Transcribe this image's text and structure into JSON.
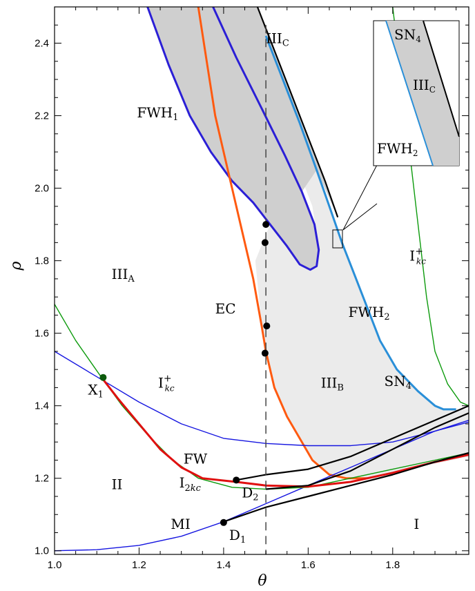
{
  "chart_data": {
    "type": "line",
    "title": "",
    "xlabel": "θ",
    "ylabel": "ρ",
    "xlim": [
      1.0,
      1.98
    ],
    "ylim": [
      0.99,
      2.5
    ],
    "x_ticks": [
      "1.0",
      "1.2",
      "1.4",
      "1.6",
      "1.8"
    ],
    "y_ticks": [
      "1.0",
      "1.2",
      "1.4",
      "1.6",
      "1.8",
      "2.0",
      "2.2",
      "2.4"
    ],
    "grid": false,
    "legend": "none",
    "dashed_line_x": 1.5,
    "colors": {
      "fwh1": "#2b1fd6",
      "ec": "#ff5a10",
      "fwh2": "#2a8fd8",
      "sn4": "#000000",
      "ik_plus": "#1515e0",
      "i2k": "#0c9a0c",
      "fw": "#e01010",
      "shade_dark": "#cfcfcf",
      "shade_light": "#ebebeb"
    },
    "series": [
      {
        "key": "fwh1",
        "points": [
          [
            1.22,
            2.5
          ],
          [
            1.27,
            2.34
          ],
          [
            1.32,
            2.2
          ],
          [
            1.37,
            2.1
          ],
          [
            1.42,
            2.02
          ],
          [
            1.47,
            1.96
          ],
          [
            1.51,
            1.9
          ],
          [
            1.55,
            1.84
          ],
          [
            1.58,
            1.79
          ],
          [
            1.605,
            1.775
          ],
          [
            1.62,
            1.785
          ],
          [
            1.625,
            1.83
          ],
          [
            1.615,
            1.9
          ],
          [
            1.585,
            1.99
          ],
          [
            1.545,
            2.09
          ],
          [
            1.49,
            2.22
          ],
          [
            1.43,
            2.36
          ],
          [
            1.375,
            2.5
          ]
        ]
      },
      {
        "key": "ec",
        "points": [
          [
            1.34,
            2.5
          ],
          [
            1.36,
            2.35
          ],
          [
            1.38,
            2.2
          ],
          [
            1.41,
            2.05
          ],
          [
            1.44,
            1.9
          ],
          [
            1.47,
            1.75
          ],
          [
            1.49,
            1.62
          ],
          [
            1.5,
            1.55
          ],
          [
            1.52,
            1.45
          ],
          [
            1.55,
            1.37
          ],
          [
            1.58,
            1.31
          ],
          [
            1.61,
            1.25
          ],
          [
            1.65,
            1.21
          ],
          [
            1.69,
            1.2
          ],
          [
            1.74,
            1.2
          ]
        ]
      },
      {
        "key": "fwh2",
        "points": [
          [
            1.5,
            2.42
          ],
          [
            1.54,
            2.3
          ],
          [
            1.58,
            2.18
          ],
          [
            1.62,
            2.05
          ],
          [
            1.65,
            1.95
          ],
          [
            1.68,
            1.85
          ],
          [
            1.71,
            1.76
          ],
          [
            1.74,
            1.67
          ],
          [
            1.77,
            1.58
          ],
          [
            1.81,
            1.5
          ],
          [
            1.86,
            1.44
          ],
          [
            1.9,
            1.4
          ],
          [
            1.92,
            1.39
          ],
          [
            1.95,
            1.39
          ]
        ]
      },
      {
        "key": "sn4",
        "points": [
          [
            1.48,
            2.5
          ],
          [
            1.52,
            2.38
          ],
          [
            1.56,
            2.26
          ],
          [
            1.6,
            2.14
          ],
          [
            1.64,
            2.02
          ],
          [
            1.67,
            1.92
          ]
        ]
      },
      {
        "key": "ik_plus",
        "points": [
          [
            1.0,
            1.55
          ],
          [
            1.1,
            1.48
          ],
          [
            1.2,
            1.41
          ],
          [
            1.3,
            1.35
          ],
          [
            1.4,
            1.31
          ],
          [
            1.5,
            1.296
          ],
          [
            1.6,
            1.29
          ],
          [
            1.7,
            1.29
          ],
          [
            1.8,
            1.3
          ],
          [
            1.9,
            1.33
          ],
          [
            1.98,
            1.355
          ]
        ]
      },
      {
        "key": "ik_plus",
        "points": [
          [
            1.0,
            1.0
          ],
          [
            1.1,
            1.003
          ],
          [
            1.2,
            1.015
          ],
          [
            1.3,
            1.04
          ],
          [
            1.4,
            1.08
          ],
          [
            1.5,
            1.13
          ],
          [
            1.6,
            1.18
          ],
          [
            1.7,
            1.23
          ],
          [
            1.8,
            1.28
          ],
          [
            1.9,
            1.33
          ],
          [
            1.98,
            1.36
          ]
        ]
      },
      {
        "key": "i2k",
        "points": [
          [
            1.0,
            1.68
          ],
          [
            1.05,
            1.58
          ],
          [
            1.11,
            1.48
          ],
          [
            1.16,
            1.4
          ],
          [
            1.22,
            1.32
          ],
          [
            1.28,
            1.25
          ],
          [
            1.34,
            1.2
          ],
          [
            1.42,
            1.175
          ],
          [
            1.5,
            1.17
          ],
          [
            1.6,
            1.175
          ],
          [
            1.7,
            1.2
          ],
          [
            1.8,
            1.225
          ],
          [
            1.9,
            1.25
          ],
          [
            1.98,
            1.27
          ]
        ]
      },
      {
        "key": "i2k",
        "points": [
          [
            1.8,
            2.5
          ],
          [
            1.83,
            2.2
          ],
          [
            1.86,
            1.9
          ],
          [
            1.88,
            1.7
          ],
          [
            1.9,
            1.55
          ],
          [
            1.93,
            1.46
          ],
          [
            1.96,
            1.41
          ],
          [
            1.98,
            1.4
          ]
        ]
      },
      {
        "key": "fw",
        "points": [
          [
            1.11,
            1.48
          ],
          [
            1.15,
            1.42
          ],
          [
            1.2,
            1.35
          ],
          [
            1.25,
            1.28
          ],
          [
            1.3,
            1.23
          ],
          [
            1.35,
            1.2
          ],
          [
            1.43,
            1.19
          ],
          [
            1.5,
            1.18
          ],
          [
            1.6,
            1.177
          ],
          [
            1.7,
            1.19
          ],
          [
            1.8,
            1.215
          ],
          [
            1.9,
            1.245
          ],
          [
            1.98,
            1.265
          ]
        ]
      },
      {
        "key": "sn4",
        "points": [
          [
            1.43,
            1.195
          ],
          [
            1.5,
            1.21
          ],
          [
            1.6,
            1.225
          ],
          [
            1.7,
            1.26
          ],
          [
            1.8,
            1.31
          ],
          [
            1.9,
            1.36
          ],
          [
            1.98,
            1.4
          ]
        ]
      },
      {
        "key": "sn4",
        "points": [
          [
            1.5,
            1.17
          ],
          [
            1.6,
            1.18
          ],
          [
            1.7,
            1.22
          ],
          [
            1.8,
            1.28
          ],
          [
            1.9,
            1.34
          ],
          [
            1.98,
            1.38
          ]
        ]
      },
      {
        "key": "sn4",
        "points": [
          [
            1.4,
            1.08
          ],
          [
            1.5,
            1.12
          ],
          [
            1.6,
            1.15
          ],
          [
            1.7,
            1.18
          ],
          [
            1.8,
            1.21
          ],
          [
            1.9,
            1.245
          ],
          [
            1.98,
            1.27
          ]
        ]
      }
    ],
    "points": [
      {
        "label": "X",
        "sub": "1",
        "x": 1.115,
        "y": 1.478,
        "color": "#0d5a0d"
      },
      {
        "label": "D",
        "sub": "2",
        "x": 1.43,
        "y": 1.195,
        "color": "#000000"
      },
      {
        "label": "D",
        "sub": "1",
        "x": 1.4,
        "y": 1.078,
        "color": "#000000"
      },
      {
        "label": "",
        "sub": "",
        "x": 1.5,
        "y": 1.9,
        "color": "#000000"
      },
      {
        "label": "",
        "sub": "",
        "x": 1.498,
        "y": 1.85,
        "color": "#000000"
      },
      {
        "label": "",
        "sub": "",
        "x": 1.502,
        "y": 1.62,
        "color": "#000000"
      },
      {
        "label": "",
        "sub": "",
        "x": 1.498,
        "y": 1.545,
        "color": "#000000"
      }
    ],
    "region_labels": [
      {
        "text": "III",
        "sub": "C",
        "x": 1.5,
        "y": 2.4
      },
      {
        "text": "FWH",
        "sub": "1",
        "x": 1.195,
        "y": 2.195
      },
      {
        "text": "III",
        "sub": "A",
        "x": 1.135,
        "y": 1.75
      },
      {
        "text": "EC",
        "sub": "",
        "x": 1.38,
        "y": 1.655
      },
      {
        "text": "FWH",
        "sub": "2",
        "x": 1.695,
        "y": 1.645
      },
      {
        "text": "SN",
        "sub": "4",
        "x": 1.78,
        "y": 1.455
      },
      {
        "text": "III",
        "sub": "B",
        "x": 1.63,
        "y": 1.45
      },
      {
        "text": "I",
        "sub": "+",
        "x": 1.245,
        "y": 1.45
      },
      {
        "text": "I",
        "sub": "+",
        "x": 1.84,
        "y": 1.8
      },
      {
        "text": "FW",
        "sub": "",
        "x": 1.305,
        "y": 1.24
      },
      {
        "text": "D",
        "sub": "2",
        "x": 1.42,
        "y": 1.245
      },
      {
        "text": "I",
        "sub": "2kc",
        "x": 1.295,
        "y": 1.175
      },
      {
        "text": "II",
        "sub": "",
        "x": 1.135,
        "y": 1.17
      },
      {
        "text": "MI",
        "sub": "",
        "x": 1.275,
        "y": 1.06
      },
      {
        "text": "I",
        "sub": "",
        "x": 1.85,
        "y": 1.06
      }
    ],
    "inset": {
      "labels": [
        "SN",
        "4",
        "III",
        "C",
        "FWH",
        "2"
      ],
      "zoom_box": {
        "x": [
          1.655,
          1.675
        ],
        "y": [
          1.84,
          1.885
        ]
      }
    }
  }
}
